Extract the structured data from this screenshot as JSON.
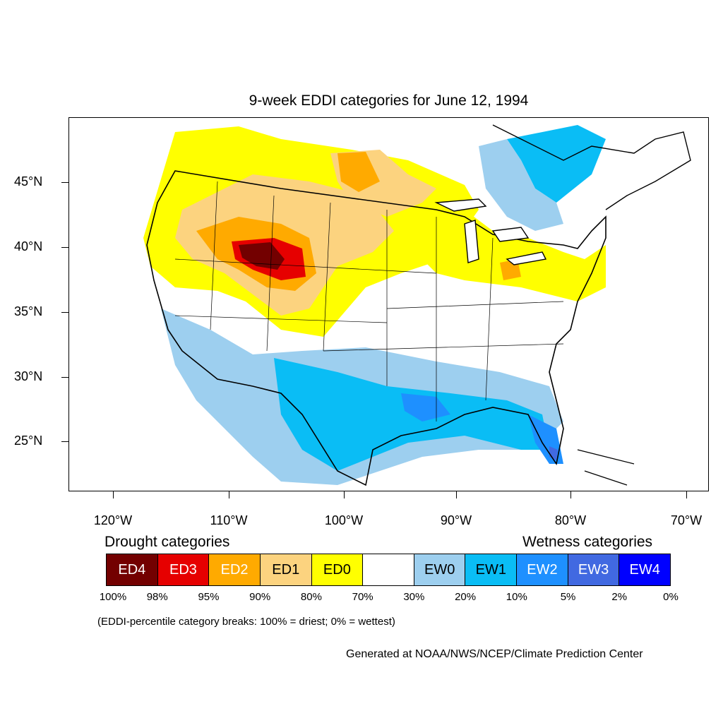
{
  "title": "9-week EDDI categories for June 12, 1994",
  "axes": {
    "lat_labels": [
      "45°N",
      "40°N",
      "35°N",
      "30°N",
      "25°N"
    ],
    "lon_labels": [
      "120°W",
      "110°W",
      "100°W",
      "90°W",
      "80°W",
      "70°W"
    ]
  },
  "legend": {
    "drought_heading": "Drought categories",
    "wetness_heading": "Wetness categories",
    "categories": [
      {
        "label": "ED4",
        "color": "#730000",
        "text_color": "#ffffff"
      },
      {
        "label": "ED3",
        "color": "#e60000",
        "text_color": "#ffffff"
      },
      {
        "label": "ED2",
        "color": "#ffaa00",
        "text_color": "#ffffff"
      },
      {
        "label": "ED1",
        "color": "#fcd37f",
        "text_color": "#000000"
      },
      {
        "label": "ED0",
        "color": "#ffff00",
        "text_color": "#000000"
      },
      {
        "label": "",
        "color": "#ffffff",
        "text_color": "#000000"
      },
      {
        "label": "EW0",
        "color": "#9dcfef",
        "text_color": "#000000"
      },
      {
        "label": "EW1",
        "color": "#0abdf5",
        "text_color": "#000000"
      },
      {
        "label": "EW2",
        "color": "#1e90ff",
        "text_color": "#ffffff"
      },
      {
        "label": "EW3",
        "color": "#4169e1",
        "text_color": "#ffffff"
      },
      {
        "label": "EW4",
        "color": "#0000ff",
        "text_color": "#ffffff"
      }
    ],
    "breaks": [
      "100%",
      "98%",
      "95%",
      "90%",
      "80%",
      "70%",
      "30%",
      "20%",
      "10%",
      "5%",
      "2%",
      "0%"
    ]
  },
  "note": "(EDDI-percentile category breaks: 100% = driest; 0% = wettest)",
  "credit": "Generated at NOAA/NWS/NCEP/Climate Prediction Center"
}
